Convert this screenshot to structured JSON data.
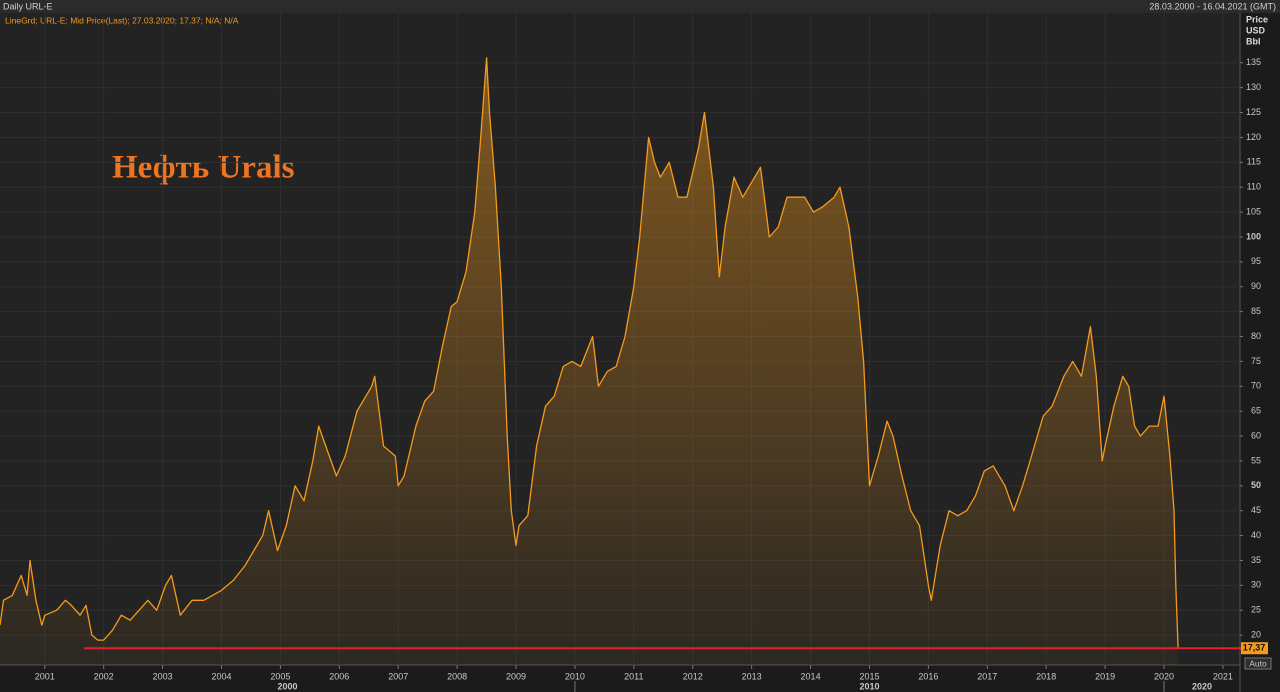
{
  "chart_data": {
    "type": "area",
    "title": "Daily URL-E",
    "date_range": "28.03.2000 - 16.04.2021 (GMT)",
    "annotation": "Нефть Urals",
    "y_axis_label": [
      "Price",
      "USD",
      "Bbl"
    ],
    "scale_button": "Auto",
    "last_value": {
      "value": 17.37,
      "label": "17,37"
    },
    "reference_line": {
      "value": 17.37,
      "x_start": 2001.67,
      "color": "#e8202a"
    },
    "xlim": [
      2000.24,
      2021.29
    ],
    "xticks": [
      2001,
      2002,
      2003,
      2004,
      2005,
      2006,
      2007,
      2008,
      2009,
      2010,
      2011,
      2012,
      2013,
      2014,
      2015,
      2016,
      2017,
      2018,
      2019,
      2020,
      2021
    ],
    "x_decades": [
      2000,
      2010,
      2020
    ],
    "ylim": [
      14,
      145
    ],
    "yticks": [
      20,
      25,
      30,
      35,
      40,
      45,
      50,
      55,
      60,
      65,
      70,
      75,
      80,
      85,
      90,
      95,
      100,
      105,
      110,
      115,
      120,
      125,
      130,
      135
    ],
    "grid": true,
    "series": [
      {
        "name": "LineGrd; URL-E; Mid Price(Last); 27.03.2020; 17,37; N/A; N/A",
        "color": "#f59a1c",
        "x": [
          2000.24,
          2000.3,
          2000.45,
          2000.6,
          2000.7,
          2000.75,
          2000.85,
          2000.95,
          2001.0,
          2001.2,
          2001.35,
          2001.45,
          2001.6,
          2001.7,
          2001.8,
          2001.9,
          2002.0,
          2002.15,
          2002.3,
          2002.45,
          2002.6,
          2002.75,
          2002.9,
          2003.05,
          2003.15,
          2003.3,
          2003.5,
          2003.7,
          2003.85,
          2004.0,
          2004.2,
          2004.4,
          2004.55,
          2004.7,
          2004.8,
          2004.95,
          2005.1,
          2005.25,
          2005.4,
          2005.55,
          2005.65,
          2005.8,
          2005.95,
          2006.1,
          2006.3,
          2006.55,
          2006.6,
          2006.75,
          2006.95,
          2007.0,
          2007.1,
          2007.3,
          2007.45,
          2007.6,
          2007.75,
          2007.9,
          2008.0,
          2008.15,
          2008.3,
          2008.4,
          2008.5,
          2008.55,
          2008.65,
          2008.75,
          2008.85,
          2008.92,
          2009.0,
          2009.05,
          2009.2,
          2009.35,
          2009.5,
          2009.65,
          2009.8,
          2009.95,
          2010.1,
          2010.3,
          2010.4,
          2010.55,
          2010.7,
          2010.85,
          2011.0,
          2011.1,
          2011.25,
          2011.35,
          2011.45,
          2011.6,
          2011.75,
          2011.9,
          2012.1,
          2012.2,
          2012.35,
          2012.45,
          2012.55,
          2012.7,
          2012.85,
          2013.0,
          2013.15,
          2013.3,
          2013.45,
          2013.6,
          2013.75,
          2013.9,
          2014.05,
          2014.2,
          2014.4,
          2014.5,
          2014.65,
          2014.8,
          2014.9,
          2015.0,
          2015.05,
          2015.15,
          2015.3,
          2015.4,
          2015.55,
          2015.7,
          2015.85,
          2016.0,
          2016.05,
          2016.2,
          2016.35,
          2016.5,
          2016.65,
          2016.8,
          2016.95,
          2017.1,
          2017.3,
          2017.45,
          2017.6,
          2017.75,
          2017.95,
          2018.1,
          2018.3,
          2018.45,
          2018.6,
          2018.75,
          2018.85,
          2018.95,
          2019.0,
          2019.15,
          2019.3,
          2019.4,
          2019.5,
          2019.6,
          2019.75,
          2019.9,
          2020.0,
          2020.1,
          2020.17,
          2020.2,
          2020.24
        ],
        "values": [
          22,
          27,
          28,
          32,
          28,
          35,
          27,
          22,
          24,
          25,
          27,
          26,
          24,
          26,
          20,
          19,
          19,
          21,
          24,
          23,
          25,
          27,
          25,
          30,
          32,
          24,
          27,
          27,
          28,
          29,
          31,
          34,
          37,
          40,
          45,
          37,
          42,
          50,
          47,
          55,
          62,
          57,
          52,
          56,
          65,
          70,
          72,
          58,
          56,
          50,
          52,
          62,
          67,
          69,
          78,
          86,
          87,
          93,
          105,
          120,
          136,
          125,
          110,
          90,
          60,
          45,
          38,
          42,
          44,
          58,
          66,
          68,
          74,
          75,
          74,
          80,
          70,
          73,
          74,
          80,
          90,
          100,
          120,
          115,
          112,
          115,
          108,
          108,
          118,
          125,
          110,
          92,
          102,
          112,
          108,
          111,
          114,
          100,
          102,
          108,
          108,
          108,
          105,
          106,
          108,
          110,
          102,
          88,
          75,
          50,
          52,
          56,
          63,
          60,
          52,
          45,
          42,
          30,
          27,
          38,
          45,
          44,
          45,
          48,
          53,
          54,
          50,
          45,
          50,
          56,
          64,
          66,
          72,
          75,
          72,
          82,
          72,
          55,
          58,
          66,
          72,
          70,
          62,
          60,
          62,
          62,
          68,
          56,
          45,
          30,
          17.37
        ]
      }
    ]
  }
}
